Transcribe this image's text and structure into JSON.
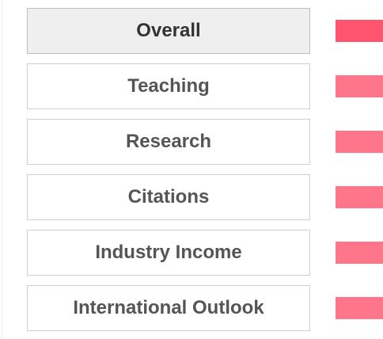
{
  "tabs": [
    "Overall",
    "Teaching",
    "Research",
    "Citations",
    "Industry Income",
    "International Outlook"
  ],
  "selected": 0
}
